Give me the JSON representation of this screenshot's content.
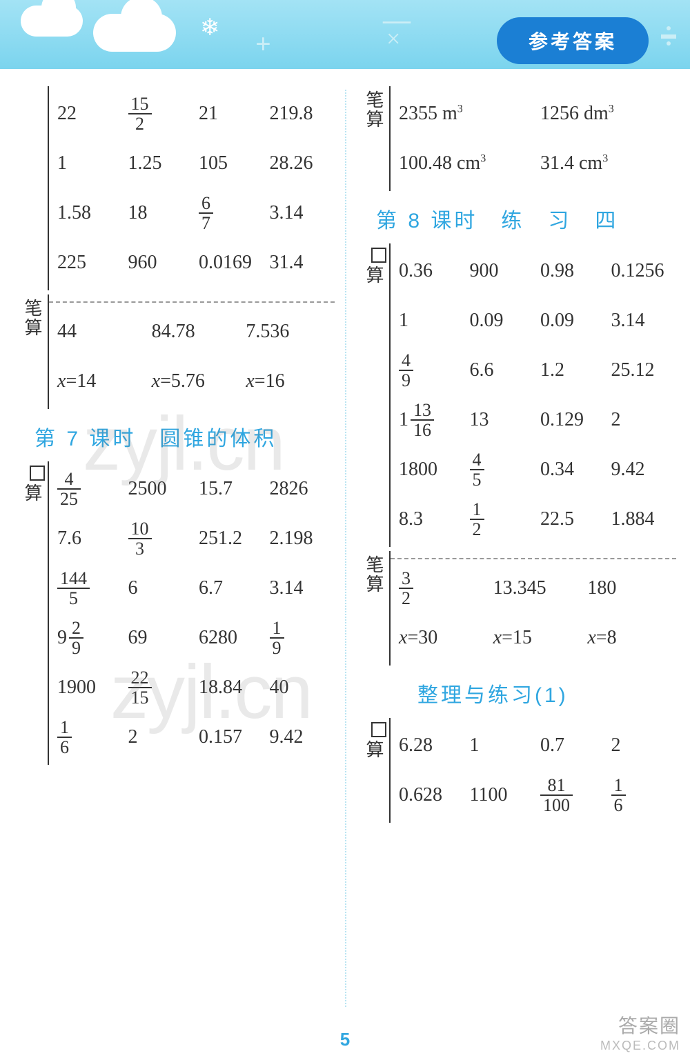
{
  "header": {
    "pill": "参考答案"
  },
  "page_number": "5",
  "watermark": {
    "big": "zyjl.cn",
    "small_a": "答案圈",
    "small_b": "MXQE.COM"
  },
  "colors": {
    "header_grad_top": "#a3e3f5",
    "header_grad_bot": "#7bd4ee",
    "pill_bg": "#1b7fd4",
    "accent": "#2fa6e0",
    "text": "#333333",
    "divider": "#b9e4f2"
  },
  "labels": {
    "bi_suan": "笔算",
    "kou_suan_char": "算"
  },
  "left": {
    "top_kousuan": [
      [
        "22",
        {
          "frac": [
            "15",
            "2"
          ]
        },
        "21",
        "219.8"
      ],
      [
        "1",
        "1.25",
        "105",
        "28.26"
      ],
      [
        "1.58",
        "18",
        {
          "frac": [
            "6",
            "7"
          ]
        },
        "3.14"
      ],
      [
        "225",
        "960",
        "0.0169",
        "31.4"
      ]
    ],
    "top_bisuan": {
      "r1": [
        "44",
        "84.78",
        "7.536"
      ],
      "r2": [
        {
          "eq": [
            "x",
            "14"
          ]
        },
        {
          "eq": [
            "x",
            "5.76"
          ]
        },
        {
          "eq": [
            "x",
            "16"
          ]
        }
      ]
    },
    "title7": "第 7 课时　圆锥的体积",
    "sec7_kousuan": [
      [
        {
          "frac": [
            "4",
            "25"
          ]
        },
        "2500",
        "15.7",
        "2826"
      ],
      [
        "7.6",
        {
          "frac": [
            "10",
            "3"
          ]
        },
        "251.2",
        "2.198"
      ],
      [
        {
          "frac": [
            "144",
            "5"
          ]
        },
        "6",
        "6.7",
        "3.14"
      ],
      [
        {
          "mix": [
            "9",
            "2",
            "9"
          ]
        },
        "69",
        "6280",
        {
          "frac": [
            "1",
            "9"
          ]
        }
      ],
      [
        "1900",
        {
          "frac": [
            "22",
            "15"
          ]
        },
        "18.84",
        "40"
      ],
      [
        {
          "frac": [
            "1",
            "6"
          ]
        },
        "2",
        "0.157",
        "9.42"
      ]
    ]
  },
  "right": {
    "top_bisuan": [
      [
        {
          "unit": [
            "2355 m",
            "3"
          ]
        },
        {
          "unit": [
            "1256 dm",
            "3"
          ]
        }
      ],
      [
        {
          "unit": [
            "100.48 cm",
            "3"
          ]
        },
        {
          "unit": [
            "31.4 cm",
            "3"
          ]
        }
      ]
    ],
    "title8": "第 8 课时　练　习　四",
    "sec8_kousuan": [
      [
        "0.36",
        "900",
        "0.98",
        "0.1256"
      ],
      [
        "1",
        "0.09",
        "0.09",
        "3.14"
      ],
      [
        {
          "frac": [
            "4",
            "9"
          ]
        },
        "6.6",
        "1.2",
        "25.12"
      ],
      [
        {
          "mix": [
            "1",
            "13",
            "16"
          ]
        },
        "13",
        "0.129",
        "2"
      ],
      [
        "1800",
        {
          "frac": [
            "4",
            "5"
          ]
        },
        "0.34",
        "9.42"
      ],
      [
        "8.3",
        {
          "frac": [
            "1",
            "2"
          ]
        },
        "22.5",
        "1.884"
      ]
    ],
    "sec8_bisuan": {
      "r1": [
        {
          "frac": [
            "3",
            "2"
          ]
        },
        "13.345",
        "180"
      ],
      "r2": [
        {
          "eq": [
            "x",
            "30"
          ]
        },
        {
          "eq": [
            "x",
            "15"
          ]
        },
        {
          "eq": [
            "x",
            "8"
          ]
        }
      ]
    },
    "title_zl": "整理与练习(1)",
    "zl_kousuan": [
      [
        "6.28",
        "1",
        "0.7",
        "2"
      ],
      [
        "0.628",
        "1100",
        {
          "frac": [
            "81",
            "100"
          ]
        },
        {
          "frac": [
            "1",
            "6"
          ]
        }
      ]
    ]
  }
}
